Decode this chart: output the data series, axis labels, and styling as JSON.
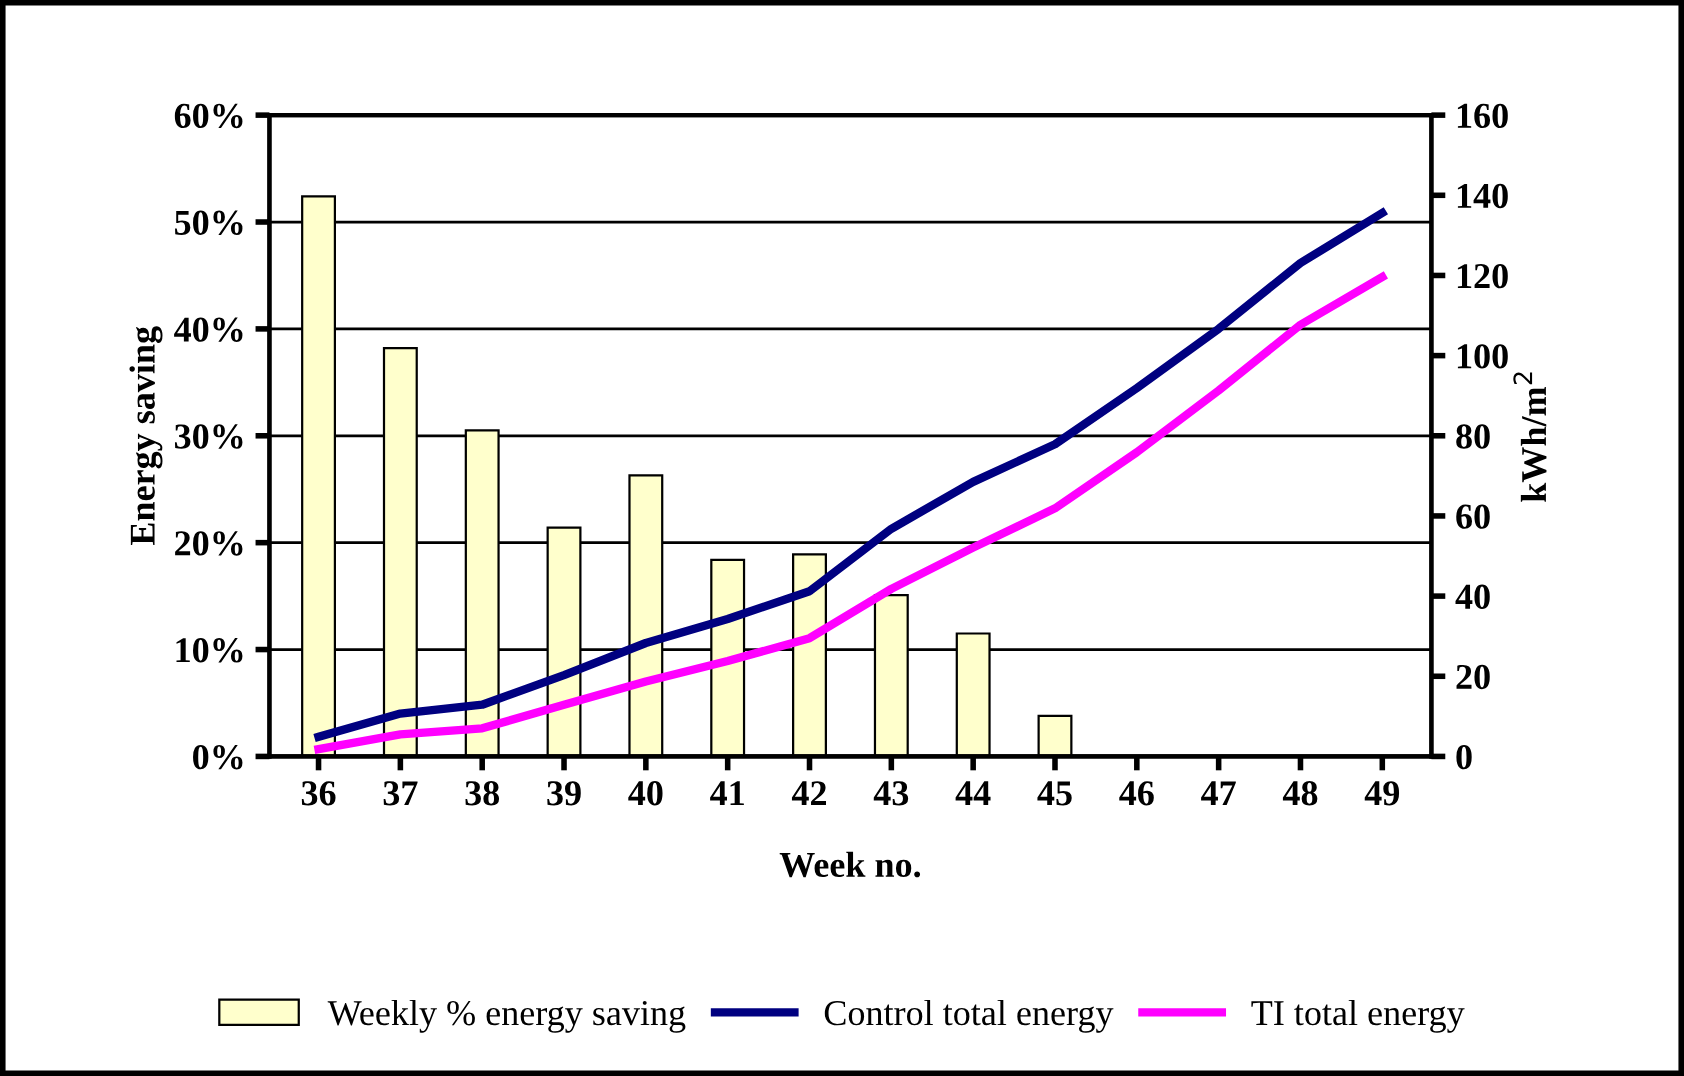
{
  "chart_data": {
    "type": "bar",
    "xlabel": "Week no.",
    "ylabel": "Energy saving",
    "y2label": "kWh/m$^{2}$",
    "categories": [
      "36",
      "37",
      "38",
      "39",
      "40",
      "41",
      "42",
      "43",
      "44",
      "45",
      "46",
      "47",
      "48",
      "49"
    ],
    "series": [
      {
        "name": "Weekly % energy saving",
        "color": "#ffffcc",
        "values": [
          52.4,
          38.2,
          30.5,
          21.4,
          26.3,
          18.4,
          18.9,
          15.1,
          11.5,
          3.8,
          null,
          null,
          null,
          null
        ]
      },
      {
        "name": "Control total energy",
        "type": "line",
        "axis": "y2",
        "color": "#000080",
        "values": [
          4.9,
          10.7,
          12.9,
          20.3,
          28.3,
          34.3,
          41.2,
          56.8,
          68.5,
          77.9,
          91.9,
          106.7,
          123.1,
          135.6
        ]
      },
      {
        "name": "TI total energy",
        "type": "line",
        "axis": "y2",
        "color": "#ff00ff",
        "values": [
          1.8,
          5.5,
          7.0,
          12.9,
          18.7,
          23.8,
          29.5,
          41.8,
          52.1,
          61.9,
          75.9,
          91.3,
          107.7,
          119.6
        ]
      }
    ],
    "ylim": [
      0,
      60
    ],
    "yticks": [
      {
        "value": 0,
        "label": "0%"
      },
      {
        "value": 10,
        "label": "10%"
      },
      {
        "value": 20,
        "label": "20%"
      },
      {
        "value": 30,
        "label": "30%"
      },
      {
        "value": 40,
        "label": "40%"
      },
      {
        "value": 50,
        "label": "50%"
      },
      {
        "value": 60,
        "label": "60%"
      }
    ],
    "y2lim": [
      0,
      160
    ],
    "y2ticks": [
      0,
      20,
      40,
      60,
      80,
      100,
      120,
      140,
      160
    ],
    "grid": "y",
    "legend": "bottom",
    "marker": "none",
    "line_style": "solid"
  }
}
